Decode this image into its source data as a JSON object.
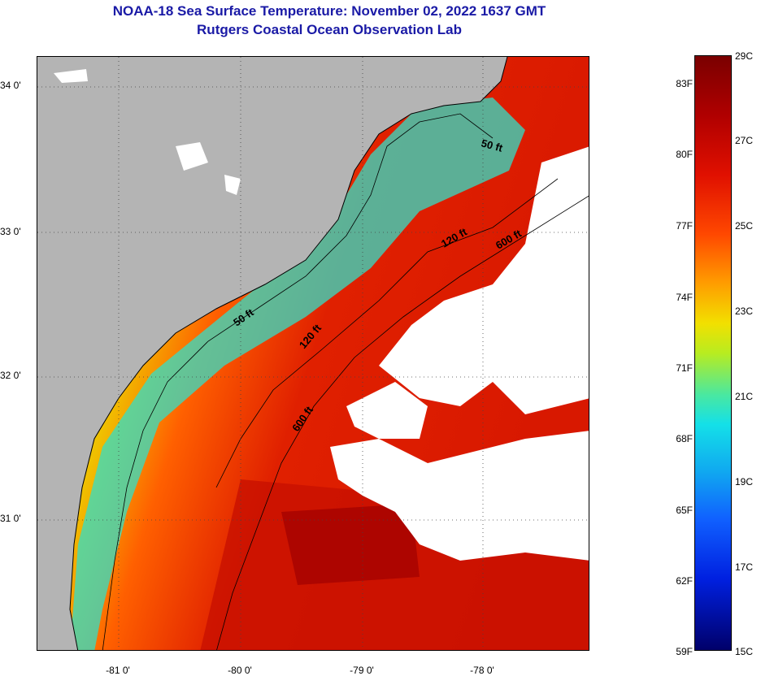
{
  "title": {
    "line1": "NOAA-18 Sea Surface Temperature:  November 02, 2022 1637 GMT",
    "line2": "Rutgers Coastal Ocean Observation Lab"
  },
  "map": {
    "lat_labels": [
      "34 0'",
      "33 0'",
      "32 0'",
      "31 0'"
    ],
    "lon_labels": [
      "-81 0'",
      "-80 0'",
      "-79 0'",
      "-78 0'"
    ],
    "contour_labels": [
      "50 ft",
      "120 ft",
      "600 ft",
      "50 ft",
      "120 ft",
      "600 ft"
    ]
  },
  "colorbar": {
    "fahrenheit_labels": [
      "83F",
      "80F",
      "77F",
      "74F",
      "71F",
      "68F",
      "65F",
      "62F",
      "59F"
    ],
    "celsius_labels": [
      "29C",
      "27C",
      "25C",
      "23C",
      "21C",
      "19C",
      "17C",
      "15C"
    ],
    "colors": [
      "#7a0000",
      "#e01000",
      "#ff9a00",
      "#f2e000",
      "#4ae8a0",
      "#14e0e8",
      "#1060ff",
      "#00006a"
    ]
  },
  "colors": {
    "land": "#b4b4b4",
    "cloud": "#ffffff",
    "title": "#1a1aa6"
  }
}
